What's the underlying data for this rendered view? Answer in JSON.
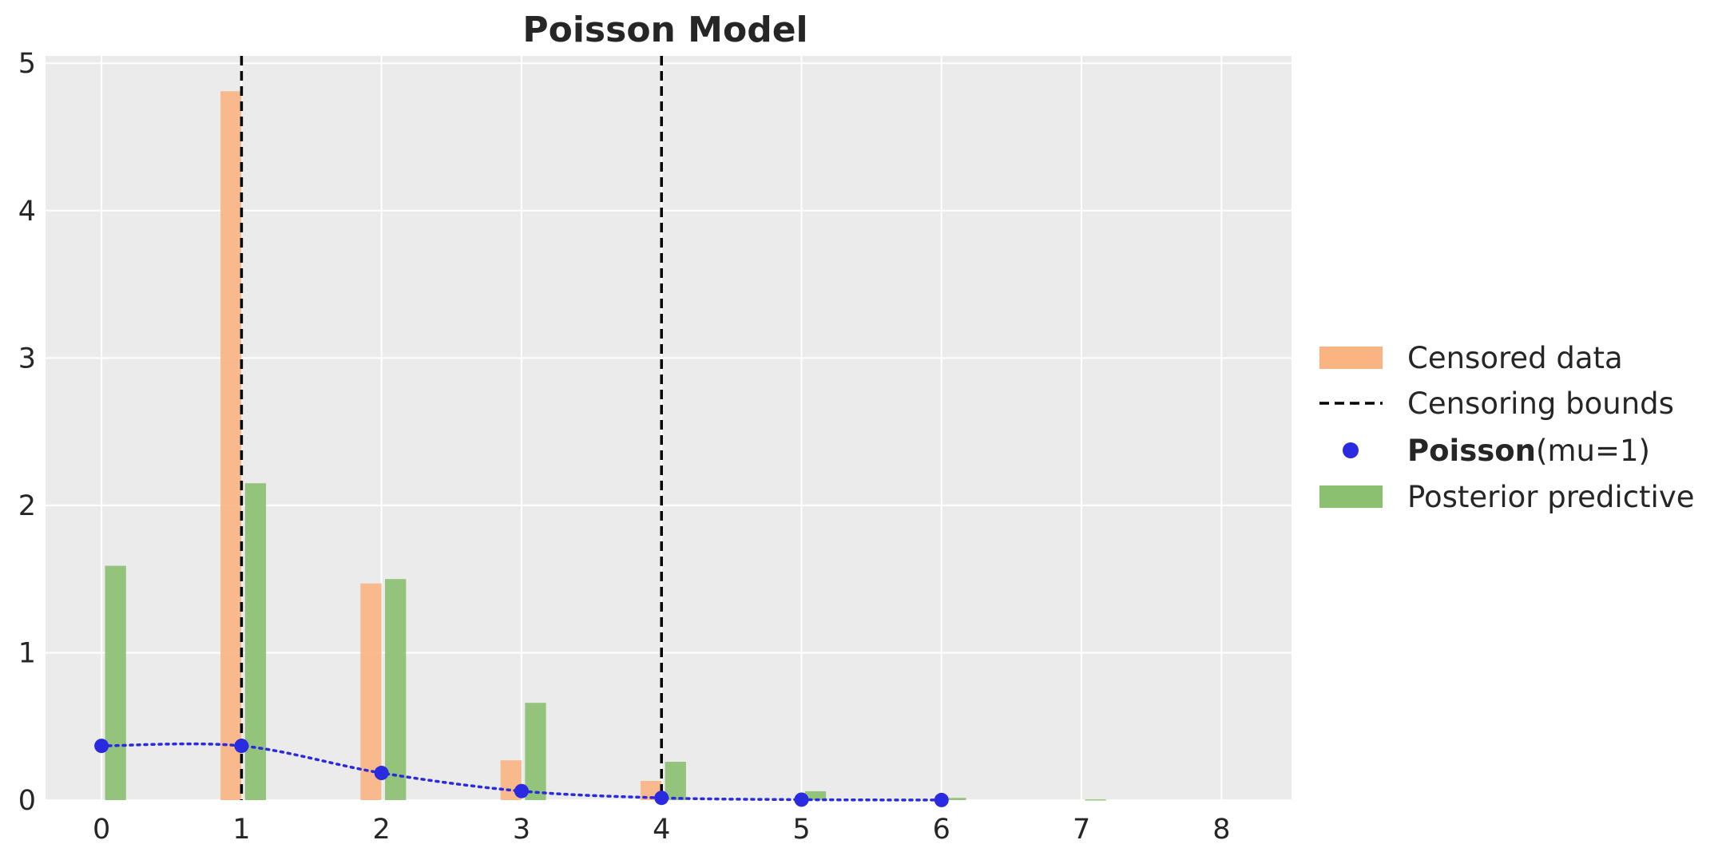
{
  "chart_data": {
    "type": "bar",
    "title": "Poisson Model",
    "xlabel": "",
    "ylabel": "",
    "xlim": [
      -0.4,
      8.5
    ],
    "ylim": [
      0,
      5.05
    ],
    "x_ticks": [
      0,
      1,
      2,
      3,
      4,
      5,
      6,
      7,
      8
    ],
    "y_ticks": [
      0,
      1,
      2,
      3,
      4,
      5
    ],
    "grid": true,
    "background": "#ebebeb",
    "legend_placement": "right, outside plot",
    "series": [
      {
        "name": "Censored data",
        "kind": "bar",
        "color": "#f9b482",
        "x": [
          1,
          2,
          3,
          4
        ],
        "values": [
          4.81,
          1.47,
          0.27,
          0.13
        ]
      },
      {
        "name": "Censoring bounds",
        "kind": "vline",
        "color": "#000000",
        "style": "dashed",
        "x": [
          1,
          4
        ]
      },
      {
        "name": "Poisson(mu=1)",
        "name_bold_part": "Poisson",
        "name_rest": "(mu=1)",
        "kind": "points-dotted-line",
        "color": "#2a2ae0",
        "x": [
          0,
          1,
          2,
          3,
          4,
          5,
          6
        ],
        "values": [
          0.368,
          0.368,
          0.184,
          0.061,
          0.015,
          0.003,
          0.0005
        ]
      },
      {
        "name": "Posterior predictive",
        "kind": "bar",
        "color": "#8cc071",
        "x": [
          0,
          1,
          2,
          3,
          4,
          5,
          6,
          7
        ],
        "values": [
          1.59,
          2.15,
          1.5,
          0.66,
          0.26,
          0.06,
          0.015,
          0.005
        ]
      }
    ]
  }
}
